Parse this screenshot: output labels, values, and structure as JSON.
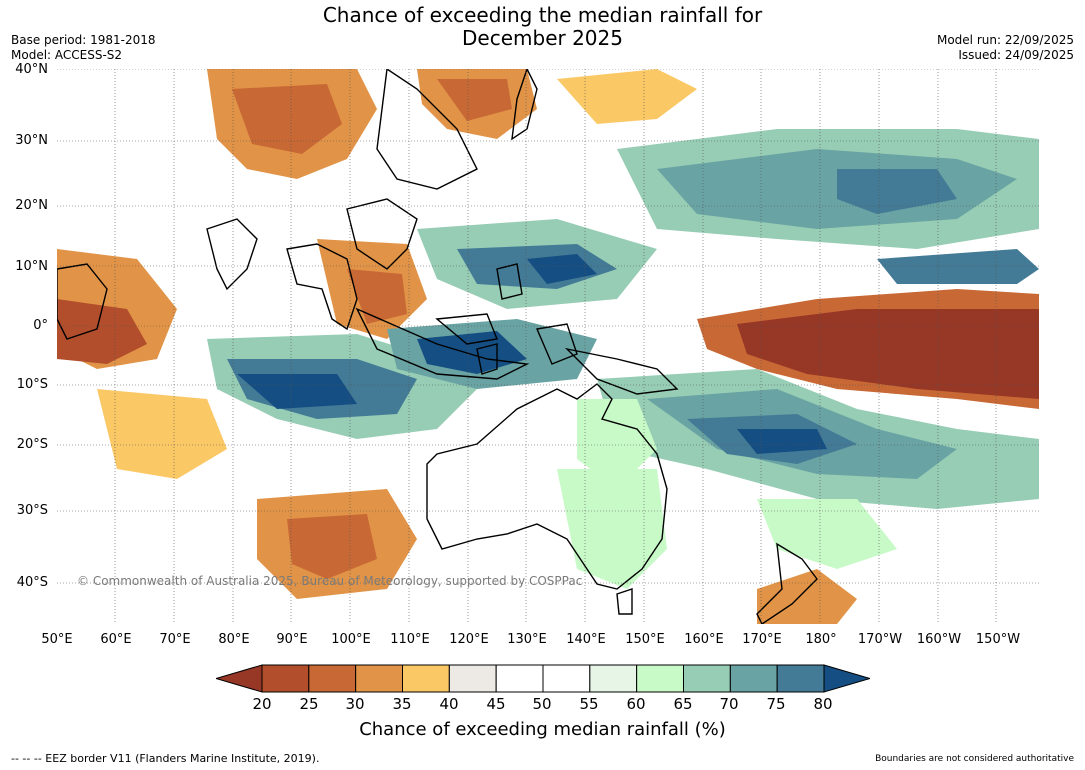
{
  "title": {
    "line1": "Chance of exceeding the median rainfall for",
    "line2": "December 2025"
  },
  "meta_left": {
    "base_period": "Base period: 1981-2018",
    "model": "Model: ACCESS-S2"
  },
  "meta_right": {
    "model_run": "Model run: 22/09/2025",
    "issued": "Issued: 24/09/2025"
  },
  "lat_labels": [
    "40°N",
    "30°N",
    "20°N",
    "10°N",
    "0°",
    "10°S",
    "20°S",
    "30°S",
    "40°S"
  ],
  "lon_labels": [
    "50°E",
    "60°E",
    "70°E",
    "80°E",
    "90°E",
    "100°E",
    "110°E",
    "120°E",
    "130°E",
    "140°E",
    "150°E",
    "160°E",
    "170°E",
    "180°",
    "170°W",
    "160°W",
    "150°W"
  ],
  "copyright": "© Commonwealth of Australia 2025, Bureau of Meteorology, supported by COSPPac",
  "colorbar": {
    "label": "Chance of exceeding median rainfall (%)",
    "ticks": [
      "20",
      "25",
      "30",
      "35",
      "40",
      "45",
      "50",
      "55",
      "60",
      "65",
      "70",
      "75",
      "80"
    ],
    "colors": {
      "below_20": "#973726",
      "20_25": "#b24e2b",
      "25_30": "#c86835",
      "30_35": "#e19447",
      "35_40": "#fbc866",
      "40_45": "#edeae6",
      "45_50": "#ffffff",
      "50_55": "#ffffff",
      "55_60": "#e6f5e6",
      "60_65": "#c8fac8",
      "65_70": "#96cdb4",
      "70_75": "#6aa3a3",
      "75_80": "#437a96",
      "above_80": "#144e82"
    }
  },
  "footer_left": "--  --  -- EEZ border V11 (Flanders Marine Institute, 2019).",
  "footer_right": "Boundaries are not considered authoritative"
}
